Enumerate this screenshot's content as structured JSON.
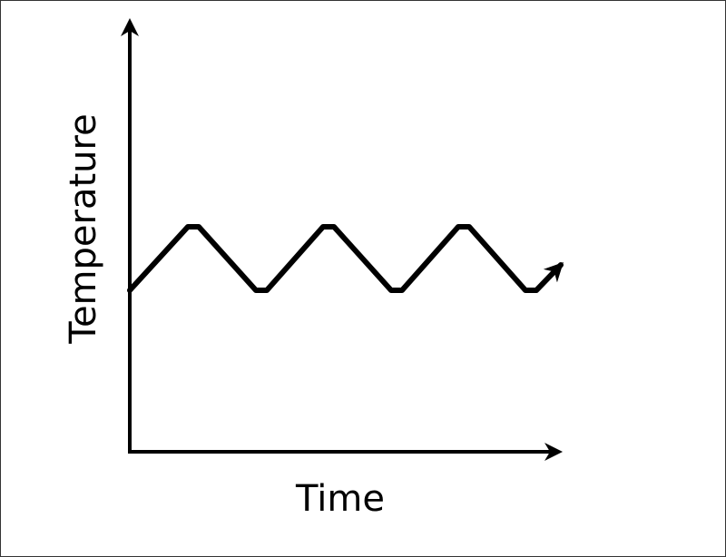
{
  "axes": {
    "y_label": "Temperature",
    "x_label": "Time"
  }
}
